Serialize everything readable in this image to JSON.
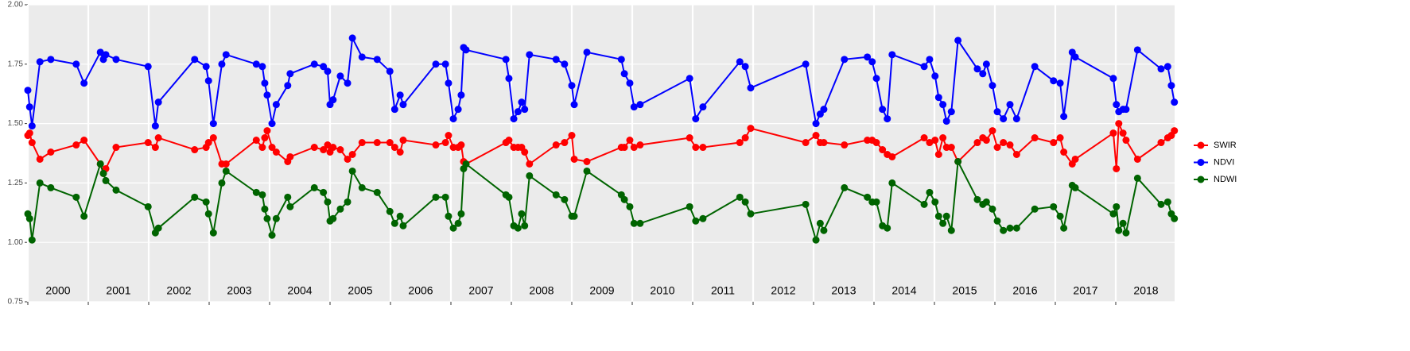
{
  "chart_data": {
    "type": "line",
    "ylim": [
      0.75,
      2.0
    ],
    "yticks": [
      {
        "value": 0.75,
        "label": "0.75"
      },
      {
        "value": 1.0,
        "label": "1.00"
      },
      {
        "value": 1.25,
        "label": "1.25"
      },
      {
        "value": 1.5,
        "label": "1.50"
      },
      {
        "value": 1.75,
        "label": "1.75"
      },
      {
        "value": 2.0,
        "label": "2.00"
      }
    ],
    "xlim": [
      2000,
      2018.97
    ],
    "xticks": [
      2000,
      2001,
      2002,
      2003,
      2004,
      2005,
      2006,
      2007,
      2008,
      2009,
      2010,
      2011,
      2012,
      2013,
      2014,
      2015,
      2016,
      2017,
      2018
    ],
    "grid": true,
    "legend": "right",
    "annotations": [
      {
        "text": "2000",
        "x": 2000.5
      },
      {
        "text": "2001",
        "x": 2001.5
      },
      {
        "text": "2002",
        "x": 2002.5
      },
      {
        "text": "2003",
        "x": 2003.5
      },
      {
        "text": "2004",
        "x": 2004.5
      },
      {
        "text": "2005",
        "x": 2005.5
      },
      {
        "text": "2006",
        "x": 2006.5
      },
      {
        "text": "2007",
        "x": 2007.5
      },
      {
        "text": "2008",
        "x": 2008.5
      },
      {
        "text": "2009",
        "x": 2009.5
      },
      {
        "text": "2010",
        "x": 2010.5
      },
      {
        "text": "2011",
        "x": 2011.5
      },
      {
        "text": "2012",
        "x": 2012.5
      },
      {
        "text": "2013",
        "x": 2013.5
      },
      {
        "text": "2014",
        "x": 2014.5
      },
      {
        "text": "2015",
        "x": 2015.5
      },
      {
        "text": "2016",
        "x": 2016.5
      },
      {
        "text": "2017",
        "x": 2017.5
      },
      {
        "text": "2018",
        "x": 2018.5
      }
    ],
    "x": [
      2000.0,
      2000.03,
      2000.07,
      2000.2,
      2000.38,
      2000.8,
      2000.93,
      2001.2,
      2001.25,
      2001.29,
      2001.46,
      2001.99,
      2002.11,
      2002.16,
      2002.76,
      2002.95,
      2002.99,
      2003.07,
      2003.21,
      2003.28,
      2003.78,
      2003.88,
      2003.92,
      2003.96,
      2004.04,
      2004.11,
      2004.3,
      2004.34,
      2004.74,
      2004.89,
      2004.96,
      2005.0,
      2005.05,
      2005.17,
      2005.29,
      2005.37,
      2005.53,
      2005.78,
      2005.99,
      2006.07,
      2006.16,
      2006.21,
      2006.75,
      2006.91,
      2006.96,
      2007.04,
      2007.12,
      2007.17,
      2007.21,
      2007.25,
      2007.91,
      2007.96,
      2008.04,
      2008.11,
      2008.17,
      2008.22,
      2008.3,
      2008.74,
      2008.88,
      2009.0,
      2009.04,
      2009.25,
      2009.82,
      2009.87,
      2009.96,
      2010.03,
      2010.13,
      2010.95,
      2011.05,
      2011.17,
      2011.78,
      2011.87,
      2011.96,
      2012.87,
      2013.04,
      2013.11,
      2013.17,
      2013.51,
      2013.89,
      2013.97,
      2014.04,
      2014.14,
      2014.22,
      2014.3,
      2014.83,
      2014.92,
      2015.01,
      2015.07,
      2015.14,
      2015.2,
      2015.28,
      2015.39,
      2015.71,
      2015.8,
      2015.86,
      2015.96,
      2016.04,
      2016.14,
      2016.25,
      2016.36,
      2016.66,
      2016.97,
      2017.08,
      2017.14,
      2017.28,
      2017.33,
      2017.96,
      2018.01,
      2018.05,
      2018.12,
      2018.17,
      2018.36,
      2018.75,
      2018.86,
      2018.92,
      2018.97
    ],
    "series": [
      {
        "name": "SWIR",
        "color": "#ff0000",
        "values": [
          1.45,
          1.46,
          1.42,
          1.35,
          1.38,
          1.41,
          1.43,
          1.33,
          1.29,
          1.31,
          1.4,
          1.42,
          1.4,
          1.44,
          1.39,
          1.4,
          1.42,
          1.44,
          1.33,
          1.33,
          1.43,
          1.4,
          1.44,
          1.47,
          1.4,
          1.38,
          1.34,
          1.36,
          1.4,
          1.39,
          1.41,
          1.38,
          1.4,
          1.39,
          1.35,
          1.37,
          1.42,
          1.42,
          1.42,
          1.4,
          1.38,
          1.43,
          1.41,
          1.42,
          1.45,
          1.4,
          1.4,
          1.41,
          1.34,
          1.33,
          1.42,
          1.43,
          1.4,
          1.4,
          1.4,
          1.38,
          1.33,
          1.41,
          1.42,
          1.45,
          1.35,
          1.34,
          1.4,
          1.4,
          1.43,
          1.4,
          1.41,
          1.44,
          1.4,
          1.4,
          1.42,
          1.44,
          1.48,
          1.42,
          1.45,
          1.42,
          1.42,
          1.41,
          1.43,
          1.43,
          1.42,
          1.39,
          1.37,
          1.36,
          1.44,
          1.42,
          1.43,
          1.37,
          1.44,
          1.4,
          1.4,
          1.34,
          1.42,
          1.44,
          1.43,
          1.47,
          1.4,
          1.42,
          1.41,
          1.37,
          1.44,
          1.42,
          1.44,
          1.38,
          1.33,
          1.35,
          1.46,
          1.31,
          1.5,
          1.46,
          1.43,
          1.35,
          1.42,
          1.44,
          1.45,
          1.47
        ]
      },
      {
        "name": "NDVI",
        "color": "#0000ff",
        "values": [
          1.64,
          1.57,
          1.49,
          1.76,
          1.77,
          1.75,
          1.67,
          1.8,
          1.77,
          1.79,
          1.77,
          1.74,
          1.49,
          1.59,
          1.77,
          1.74,
          1.68,
          1.5,
          1.75,
          1.79,
          1.75,
          1.74,
          1.67,
          1.62,
          1.5,
          1.58,
          1.66,
          1.71,
          1.75,
          1.74,
          1.72,
          1.58,
          1.6,
          1.7,
          1.67,
          1.86,
          1.78,
          1.77,
          1.72,
          1.56,
          1.62,
          1.58,
          1.75,
          1.75,
          1.67,
          1.52,
          1.56,
          1.62,
          1.82,
          1.81,
          1.77,
          1.69,
          1.52,
          1.55,
          1.59,
          1.56,
          1.79,
          1.77,
          1.75,
          1.66,
          1.58,
          1.8,
          1.77,
          1.71,
          1.67,
          1.57,
          1.58,
          1.69,
          1.52,
          1.57,
          1.76,
          1.74,
          1.65,
          1.75,
          1.5,
          1.54,
          1.56,
          1.77,
          1.78,
          1.76,
          1.69,
          1.56,
          1.52,
          1.79,
          1.74,
          1.77,
          1.7,
          1.61,
          1.58,
          1.51,
          1.55,
          1.85,
          1.73,
          1.71,
          1.75,
          1.66,
          1.55,
          1.52,
          1.58,
          1.52,
          1.74,
          1.68,
          1.67,
          1.53,
          1.8,
          1.78,
          1.69,
          1.58,
          1.55,
          1.56,
          1.56,
          1.81,
          1.73,
          1.74,
          1.66,
          1.59
        ]
      },
      {
        "name": "NDWI",
        "color": "#006400",
        "values": [
          1.12,
          1.1,
          1.01,
          1.25,
          1.23,
          1.19,
          1.11,
          1.33,
          1.29,
          1.26,
          1.22,
          1.15,
          1.04,
          1.06,
          1.19,
          1.17,
          1.12,
          1.04,
          1.25,
          1.3,
          1.21,
          1.2,
          1.14,
          1.1,
          1.03,
          1.1,
          1.19,
          1.15,
          1.23,
          1.21,
          1.17,
          1.09,
          1.1,
          1.14,
          1.17,
          1.3,
          1.23,
          1.21,
          1.13,
          1.08,
          1.11,
          1.07,
          1.19,
          1.19,
          1.11,
          1.06,
          1.08,
          1.12,
          1.31,
          1.33,
          1.2,
          1.19,
          1.07,
          1.06,
          1.12,
          1.07,
          1.28,
          1.2,
          1.18,
          1.11,
          1.11,
          1.3,
          1.2,
          1.18,
          1.15,
          1.08,
          1.08,
          1.15,
          1.09,
          1.1,
          1.19,
          1.17,
          1.12,
          1.16,
          1.01,
          1.08,
          1.05,
          1.23,
          1.19,
          1.17,
          1.17,
          1.07,
          1.06,
          1.25,
          1.16,
          1.21,
          1.17,
          1.11,
          1.08,
          1.11,
          1.05,
          1.34,
          1.18,
          1.16,
          1.17,
          1.14,
          1.09,
          1.05,
          1.06,
          1.06,
          1.14,
          1.15,
          1.11,
          1.06,
          1.24,
          1.23,
          1.12,
          1.15,
          1.05,
          1.08,
          1.04,
          1.27,
          1.16,
          1.17,
          1.12,
          1.1
        ]
      }
    ]
  }
}
